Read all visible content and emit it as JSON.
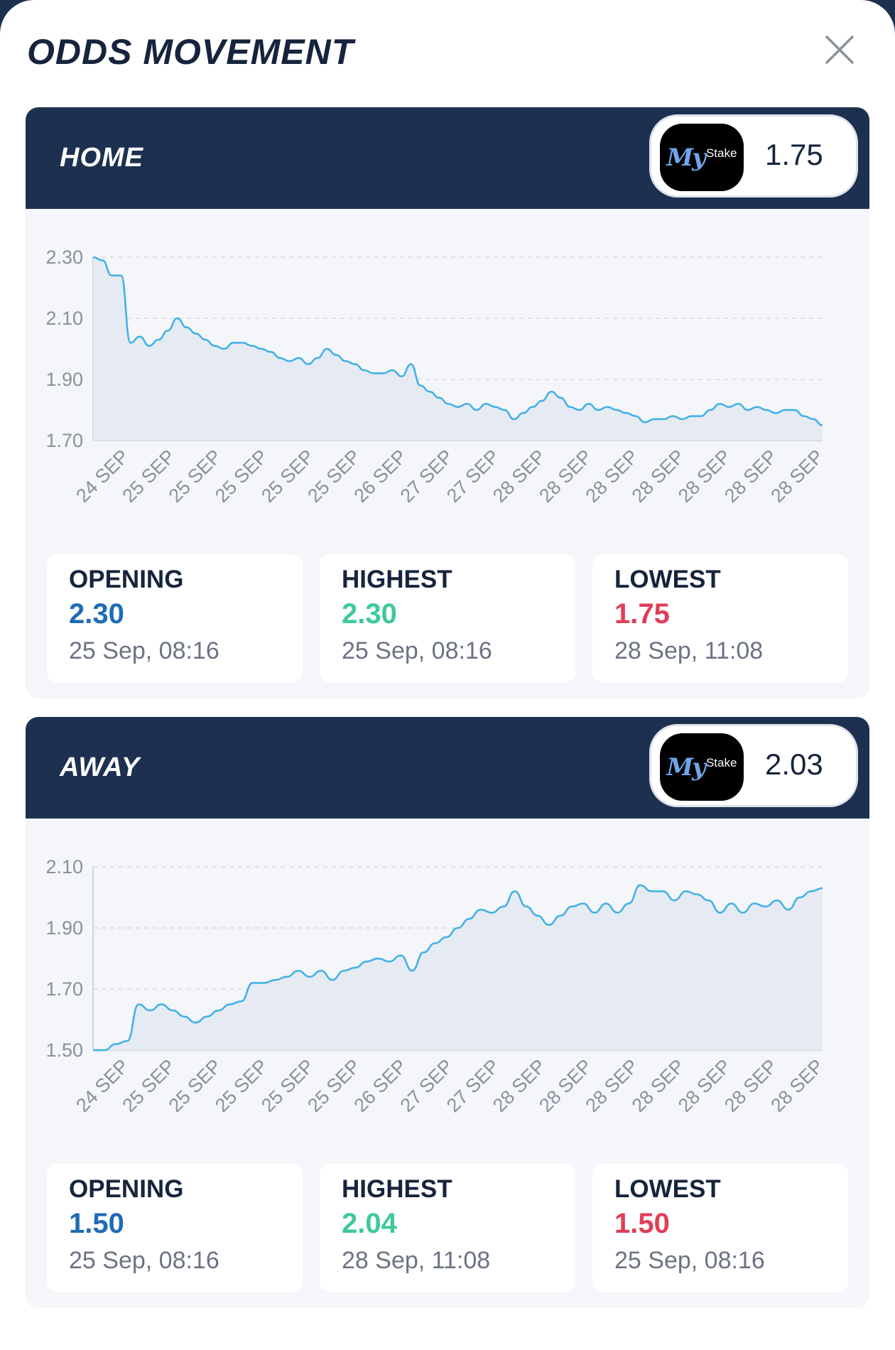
{
  "modal": {
    "title": "ODDS MOVEMENT",
    "close_icon": "close-icon"
  },
  "colors": {
    "header_bg": "#1d3050",
    "line": "#3eb0e6",
    "area": "#e6eaf3",
    "opening": "#1f6bb5",
    "highest": "#3ec99a",
    "lowest": "#e03e58"
  },
  "panels": [
    {
      "outcome": "HOME",
      "bookmaker_logo": {
        "my": "My",
        "stake": "Stake"
      },
      "current_odds": "1.75",
      "stats": {
        "opening": {
          "label": "OPENING",
          "value": "2.30",
          "time": "25 Sep, 08:16"
        },
        "highest": {
          "label": "HIGHEST",
          "value": "2.30",
          "time": "25 Sep, 08:16"
        },
        "lowest": {
          "label": "LOWEST",
          "value": "1.75",
          "time": "28 Sep, 11:08"
        }
      }
    },
    {
      "outcome": "AWAY",
      "bookmaker_logo": {
        "my": "My",
        "stake": "Stake"
      },
      "current_odds": "2.03",
      "stats": {
        "opening": {
          "label": "OPENING",
          "value": "1.50",
          "time": "25 Sep, 08:16"
        },
        "highest": {
          "label": "HIGHEST",
          "value": "2.04",
          "time": "28 Sep, 11:08"
        },
        "lowest": {
          "label": "LOWEST",
          "value": "1.50",
          "time": "25 Sep, 08:16"
        }
      }
    }
  ],
  "chart_data": [
    {
      "type": "area",
      "series": "HOME",
      "title": "",
      "xlabel": "",
      "ylabel": "",
      "ylim": [
        1.7,
        2.3
      ],
      "y_ticks": [
        "2.30",
        "2.10",
        "1.90",
        "1.70"
      ],
      "y_tick_values": [
        2.3,
        2.1,
        1.9,
        1.7
      ],
      "x_tick_labels": [
        "24 SEP",
        "25 SEP",
        "25 SEP",
        "25 SEP",
        "25 SEP",
        "25 SEP",
        "26 SEP",
        "27 SEP",
        "27 SEP",
        "28 SEP",
        "28 SEP",
        "28 SEP",
        "28 SEP",
        "28 SEP",
        "28 SEP",
        "28 SEP"
      ],
      "grid": true,
      "values": [
        2.3,
        2.29,
        2.24,
        2.24,
        2.02,
        2.04,
        2.01,
        2.03,
        2.06,
        2.1,
        2.07,
        2.05,
        2.03,
        2.01,
        2.0,
        2.02,
        2.02,
        2.01,
        2.0,
        1.99,
        1.97,
        1.96,
        1.97,
        1.95,
        1.97,
        2.0,
        1.98,
        1.96,
        1.95,
        1.93,
        1.92,
        1.92,
        1.93,
        1.91,
        1.95,
        1.88,
        1.86,
        1.84,
        1.82,
        1.81,
        1.82,
        1.8,
        1.82,
        1.81,
        1.8,
        1.77,
        1.79,
        1.81,
        1.83,
        1.86,
        1.84,
        1.81,
        1.8,
        1.82,
        1.8,
        1.81,
        1.8,
        1.79,
        1.78,
        1.76,
        1.77,
        1.77,
        1.78,
        1.77,
        1.78,
        1.78,
        1.8,
        1.82,
        1.81,
        1.82,
        1.8,
        1.81,
        1.8,
        1.79,
        1.8,
        1.8,
        1.78,
        1.77,
        1.75
      ]
    },
    {
      "type": "area",
      "series": "AWAY",
      "title": "",
      "xlabel": "",
      "ylabel": "",
      "ylim": [
        1.5,
        2.1
      ],
      "y_ticks": [
        "2.10",
        "1.90",
        "1.70",
        "1.50"
      ],
      "y_tick_values": [
        2.1,
        1.9,
        1.7,
        1.5
      ],
      "x_tick_labels": [
        "24 SEP",
        "25 SEP",
        "25 SEP",
        "25 SEP",
        "25 SEP",
        "25 SEP",
        "26 SEP",
        "27 SEP",
        "27 SEP",
        "28 SEP",
        "28 SEP",
        "28 SEP",
        "28 SEP",
        "28 SEP",
        "28 SEP",
        "28 SEP"
      ],
      "grid": true,
      "values": [
        1.5,
        1.5,
        1.52,
        1.53,
        1.65,
        1.63,
        1.65,
        1.63,
        1.61,
        1.59,
        1.61,
        1.63,
        1.65,
        1.66,
        1.72,
        1.72,
        1.73,
        1.74,
        1.76,
        1.74,
        1.76,
        1.73,
        1.76,
        1.77,
        1.79,
        1.8,
        1.79,
        1.81,
        1.76,
        1.82,
        1.85,
        1.87,
        1.9,
        1.93,
        1.96,
        1.95,
        1.97,
        2.02,
        1.97,
        1.94,
        1.91,
        1.94,
        1.97,
        1.98,
        1.95,
        1.98,
        1.95,
        1.98,
        2.04,
        2.02,
        2.02,
        1.99,
        2.02,
        2.01,
        1.99,
        1.95,
        1.98,
        1.95,
        1.98,
        1.97,
        1.99,
        1.96,
        2.0,
        2.02,
        2.03
      ]
    }
  ]
}
